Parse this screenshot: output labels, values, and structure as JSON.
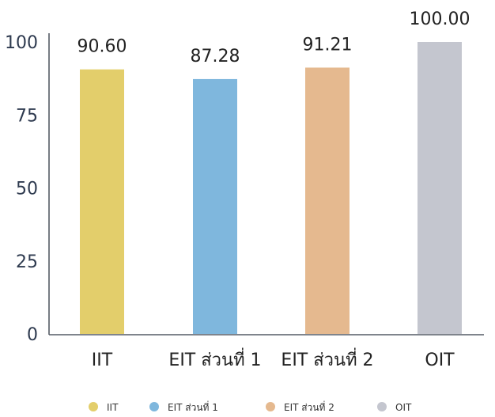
{
  "chart_data": {
    "type": "bar",
    "categories": [
      "IIT",
      "EIT ส่วนที่ 1",
      "EIT ส่วนที่ 2",
      "OIT"
    ],
    "values": [
      90.6,
      87.28,
      91.21,
      100.0
    ],
    "value_labels": [
      "90.60",
      "87.28",
      "91.21",
      "100.00"
    ],
    "colors": [
      "#e3ce6b",
      "#7fb7dd",
      "#e5b98f",
      "#c4c6cf"
    ],
    "ylim": [
      0,
      100
    ],
    "yticks": [
      0,
      25,
      50,
      75,
      100
    ],
    "grid": false,
    "legend_position": "bottom-center",
    "legend": [
      {
        "label": "IIT",
        "color": "#e3ce6b"
      },
      {
        "label": "EIT ส่วนที่ 1",
        "color": "#7fb7dd"
      },
      {
        "label": "EIT ส่วนที่ 2",
        "color": "#e5b98f"
      },
      {
        "label": "OIT",
        "color": "#c4c6cf"
      }
    ],
    "title": "",
    "xlabel": "",
    "ylabel": ""
  }
}
